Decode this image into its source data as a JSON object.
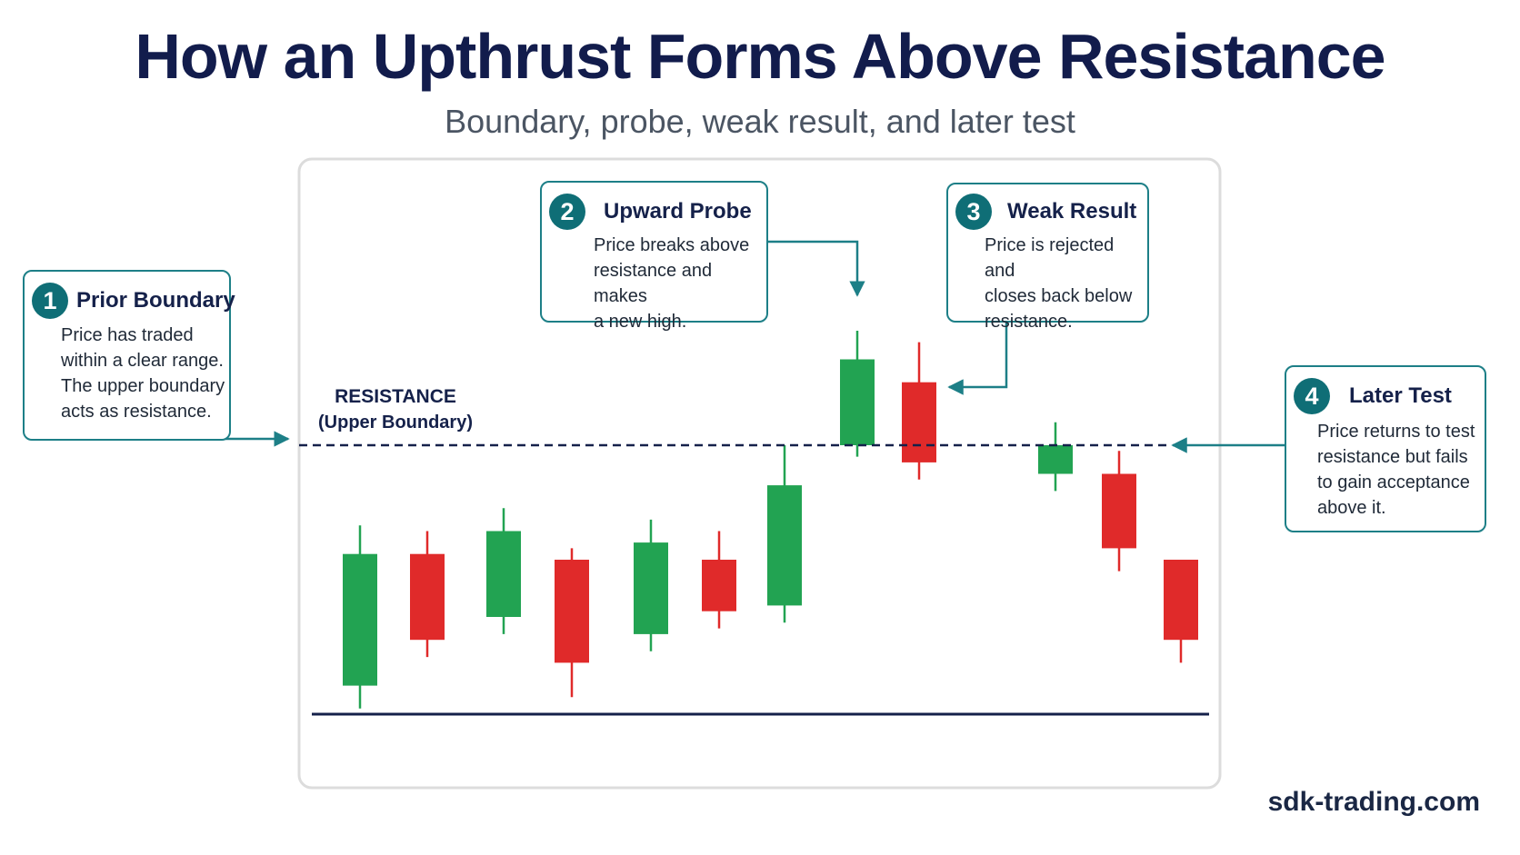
{
  "title": "How an Upthrust Forms Above Resistance",
  "subtitle": "Boundary, probe, weak result, and later test",
  "resistance_label": {
    "line1": "RESISTANCE",
    "line2": "(Upper Boundary)"
  },
  "callouts": [
    {
      "number": "1",
      "heading": "Prior Boundary",
      "lines": [
        "Price has traded",
        "within a clear range.",
        "The upper boundary",
        "acts as resistance."
      ]
    },
    {
      "number": "2",
      "heading": "Upward Probe",
      "lines": [
        "Price breaks above",
        "resistance and makes",
        "a new high."
      ]
    },
    {
      "number": "3",
      "heading": "Weak Result",
      "lines": [
        "Price is rejected and",
        "closes back below",
        "resistance."
      ]
    },
    {
      "number": "4",
      "heading": "Later Test",
      "lines": [
        "Price returns to test",
        "resistance but fails",
        "to gain acceptance",
        "above it."
      ]
    }
  ],
  "brand": "sdk-trading.com",
  "colors": {
    "bullish": "#22a352",
    "bearish": "#e02a2a",
    "accent": "#1d7f87",
    "resistance_line": "#15214a"
  },
  "chart_data": {
    "type": "candlestick",
    "y_scale": "price index (unlabeled)",
    "resistance": 100,
    "candles": [
      {
        "dir": "up",
        "open": 58,
        "close": 81,
        "high": 86,
        "low": 54
      },
      {
        "dir": "down",
        "open": 81,
        "close": 66,
        "high": 85,
        "low": 63
      },
      {
        "dir": "up",
        "open": 70,
        "close": 85,
        "high": 89,
        "low": 67
      },
      {
        "dir": "down",
        "open": 80,
        "close": 62,
        "high": 82,
        "low": 56
      },
      {
        "dir": "up",
        "open": 67,
        "close": 83,
        "high": 87,
        "low": 64
      },
      {
        "dir": "down",
        "open": 80,
        "close": 71,
        "high": 85,
        "low": 68
      },
      {
        "dir": "up",
        "open": 72,
        "close": 93,
        "high": 100,
        "low": 69
      },
      {
        "dir": "up",
        "open": 100,
        "close": 115,
        "high": 120,
        "low": 98
      },
      {
        "dir": "down",
        "open": 111,
        "close": 97,
        "high": 118,
        "low": 94
      },
      {
        "dir": "up",
        "open": 95,
        "close": 100,
        "high": 104,
        "low": 92
      },
      {
        "dir": "down",
        "open": 95,
        "close": 82,
        "high": 99,
        "low": 78
      },
      {
        "dir": "down",
        "open": 80,
        "close": 66,
        "high": 80,
        "low": 62
      }
    ]
  }
}
